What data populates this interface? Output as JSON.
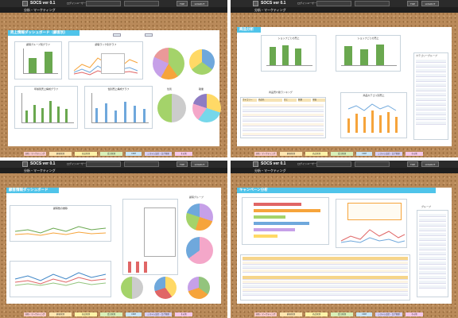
{
  "app": {
    "name": "SOCS ver 0.1",
    "section": "分析・マーケティング",
    "login_label": "ログインユーザー",
    "top_button": "TOP",
    "logout_button": "LOGOUT"
  },
  "quads": [
    {
      "banner": "売上情報ダッシュボード（顧客別）",
      "charts": [
        "顧客グループ別グラフ",
        "顧客ランク別グラフ",
        "顧客グループ別",
        "年齢別売上構成グラフ",
        "性別売上構成グラフ",
        "性別",
        "職業"
      ]
    },
    {
      "banner": "商品分析",
      "charts": [
        "ショップごとの売上",
        "ショップごとの売上",
        "カテゴリーグループ",
        "商品売れ筋ランキング",
        "商品カテゴリ別売上"
      ],
      "table_headers": [
        "カテゴリー",
        "商品名",
        "売上",
        "数量",
        "単価"
      ]
    },
    {
      "banner": "顧客情報ダッシュボード",
      "charts": [
        "顧客数の推移",
        "顧客グループ",
        "会員・非会員",
        "性別",
        "年代別"
      ]
    },
    {
      "banner": "キャンペーン分析",
      "charts": [
        "キャンペーン別売上",
        "キャンペーン効果",
        "グループ"
      ]
    }
  ],
  "footer_tabs": [
    "分析・マーケティング",
    "顧客管理",
    "商品管理",
    "受注管理",
    "CRM",
    "システム設定・ログ管理",
    "その他"
  ],
  "colors": {
    "banner": "#4fc4ea",
    "cork": "#b98a5a",
    "header": "#2b2b2b",
    "bar_green": "#6aa84f",
    "accent_orange": "#f6a43b"
  }
}
